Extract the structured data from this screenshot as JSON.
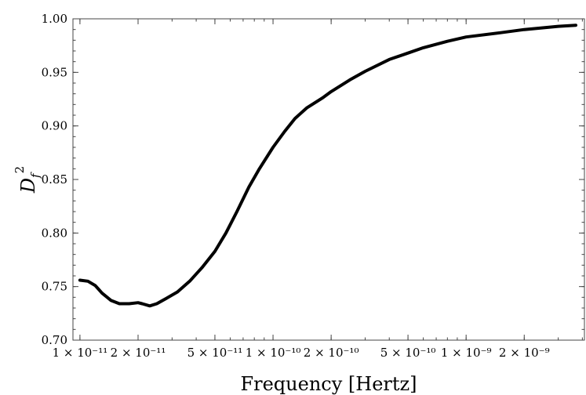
{
  "chart_data": {
    "type": "line",
    "title": "",
    "xlabel": "Frequency [Hertz]",
    "ylabel": {
      "main": "D",
      "sub": "f",
      "sup": "2"
    },
    "xscale": "log",
    "xlim": [
      9.2e-12,
      4.1e-09
    ],
    "ylim": [
      0.7,
      1.0
    ],
    "grid": false,
    "legend": "none",
    "x_ticks": [
      {
        "value": 1e-11,
        "label": "1 × 10⁻¹¹"
      },
      {
        "value": 2e-11,
        "label": "2 × 10⁻¹¹"
      },
      {
        "value": 5e-11,
        "label": "5 × 10⁻¹¹"
      },
      {
        "value": 1e-10,
        "label": "1 × 10⁻¹⁰"
      },
      {
        "value": 2e-10,
        "label": "2 × 10⁻¹⁰"
      },
      {
        "value": 5e-10,
        "label": "5 × 10⁻¹⁰"
      },
      {
        "value": 1e-09,
        "label": "1 × 10⁻⁹"
      },
      {
        "value": 2e-09,
        "label": "2 × 10⁻⁹"
      }
    ],
    "y_ticks": [
      {
        "value": 0.7,
        "label": "0.70"
      },
      {
        "value": 0.75,
        "label": "0.75"
      },
      {
        "value": 0.8,
        "label": "0.80"
      },
      {
        "value": 0.85,
        "label": "0.85"
      },
      {
        "value": 0.9,
        "label": "0.90"
      },
      {
        "value": 0.95,
        "label": "0.95"
      },
      {
        "value": 1.0,
        "label": "1.00"
      }
    ],
    "series": [
      {
        "color": "#000000",
        "x": [
          1e-11,
          1.1e-11,
          1.2e-11,
          1.3e-11,
          1.45e-11,
          1.6e-11,
          1.8e-11,
          2e-11,
          2.1e-11,
          2.3e-11,
          2.5e-11,
          2.8e-11,
          3.2e-11,
          3.7e-11,
          4.3e-11,
          5e-11,
          5.7e-11,
          6.5e-11,
          7.5e-11,
          8.5e-11,
          1e-10,
          1.15e-10,
          1.3e-10,
          1.5e-10,
          1.8e-10,
          2e-10,
          2.5e-10,
          3e-10,
          4e-10,
          5e-10,
          6e-10,
          8e-10,
          1e-09,
          1.5e-09,
          2e-09,
          3e-09,
          3.7e-09
        ],
        "y": [
          0.756,
          0.755,
          0.751,
          0.744,
          0.737,
          0.734,
          0.734,
          0.735,
          0.734,
          0.732,
          0.734,
          0.739,
          0.745,
          0.755,
          0.768,
          0.783,
          0.8,
          0.82,
          0.843,
          0.86,
          0.88,
          0.895,
          0.907,
          0.917,
          0.926,
          0.932,
          0.943,
          0.951,
          0.962,
          0.968,
          0.973,
          0.979,
          0.983,
          0.987,
          0.99,
          0.993,
          0.994
        ]
      }
    ]
  }
}
